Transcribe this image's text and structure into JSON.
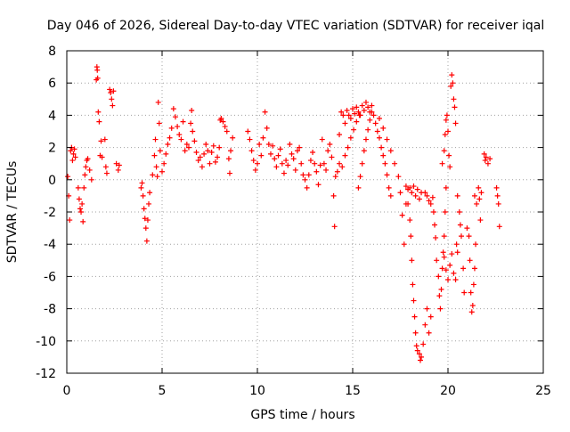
{
  "chart_data": {
    "type": "scatter",
    "title": "Day 046 of 2026, Sidereal Day-to-day VTEC variation (SDTVAR) for receiver iqal",
    "xlabel": "GPS time / hours",
    "ylabel": "SDTVAR / TECUs",
    "xlim": [
      0,
      25
    ],
    "ylim": [
      -12,
      8
    ],
    "xticks": [
      0,
      5,
      10,
      15,
      20,
      25
    ],
    "yticks": [
      -12,
      -10,
      -8,
      -6,
      -4,
      -2,
      0,
      2,
      4,
      6,
      8
    ],
    "grid": true,
    "marker": "+",
    "series": [
      {
        "name": "SDTVAR",
        "color": "#ff0000",
        "points": [
          [
            0.05,
            0.2
          ],
          [
            0.1,
            -1.0
          ],
          [
            0.15,
            -2.5
          ],
          [
            0.2,
            1.8
          ],
          [
            0.25,
            2.0
          ],
          [
            0.3,
            1.2
          ],
          [
            0.35,
            1.6
          ],
          [
            0.4,
            1.9
          ],
          [
            0.45,
            1.4
          ],
          [
            0.6,
            -0.5
          ],
          [
            0.65,
            -1.2
          ],
          [
            0.7,
            -1.8
          ],
          [
            0.75,
            -2.0
          ],
          [
            0.8,
            -1.5
          ],
          [
            0.85,
            -2.6
          ],
          [
            0.9,
            -0.5
          ],
          [
            0.95,
            0.3
          ],
          [
            1.0,
            0.8
          ],
          [
            1.05,
            1.2
          ],
          [
            1.1,
            1.3
          ],
          [
            1.2,
            0.6
          ],
          [
            1.3,
            0.0
          ],
          [
            1.55,
            6.2
          ],
          [
            1.58,
            7.0
          ],
          [
            1.6,
            6.8
          ],
          [
            1.62,
            6.3
          ],
          [
            1.65,
            4.2
          ],
          [
            1.7,
            3.6
          ],
          [
            1.75,
            1.5
          ],
          [
            1.8,
            2.4
          ],
          [
            1.85,
            1.4
          ],
          [
            2.0,
            2.5
          ],
          [
            2.05,
            0.8
          ],
          [
            2.1,
            0.4
          ],
          [
            2.25,
            5.6
          ],
          [
            2.3,
            5.4
          ],
          [
            2.35,
            5.0
          ],
          [
            2.4,
            4.6
          ],
          [
            2.45,
            5.5
          ],
          [
            2.6,
            1.0
          ],
          [
            2.7,
            0.6
          ],
          [
            2.75,
            0.9
          ],
          [
            3.9,
            -0.5
          ],
          [
            3.95,
            -0.2
          ],
          [
            4.0,
            -1.0
          ],
          [
            4.05,
            -1.8
          ],
          [
            4.1,
            -2.4
          ],
          [
            4.15,
            -3.0
          ],
          [
            4.2,
            -3.8
          ],
          [
            4.25,
            -2.5
          ],
          [
            4.3,
            -1.5
          ],
          [
            4.35,
            -0.8
          ],
          [
            4.5,
            0.3
          ],
          [
            4.6,
            1.5
          ],
          [
            4.65,
            2.5
          ],
          [
            4.7,
            0.8
          ],
          [
            4.75,
            0.2
          ],
          [
            4.8,
            4.8
          ],
          [
            4.85,
            3.5
          ],
          [
            4.9,
            1.8
          ],
          [
            5.0,
            0.5
          ],
          [
            5.1,
            1.0
          ],
          [
            5.2,
            1.6
          ],
          [
            5.3,
            2.2
          ],
          [
            5.4,
            2.6
          ],
          [
            5.5,
            3.2
          ],
          [
            5.6,
            4.4
          ],
          [
            5.7,
            3.9
          ],
          [
            5.8,
            3.3
          ],
          [
            5.9,
            2.8
          ],
          [
            6.0,
            2.5
          ],
          [
            6.1,
            3.6
          ],
          [
            6.2,
            1.8
          ],
          [
            6.3,
            2.2
          ],
          [
            6.4,
            2.0
          ],
          [
            6.5,
            3.5
          ],
          [
            6.55,
            4.3
          ],
          [
            6.6,
            3.0
          ],
          [
            6.7,
            2.4
          ],
          [
            6.8,
            1.7
          ],
          [
            6.9,
            1.2
          ],
          [
            7.0,
            1.4
          ],
          [
            7.1,
            0.8
          ],
          [
            7.2,
            1.6
          ],
          [
            7.3,
            2.2
          ],
          [
            7.4,
            1.8
          ],
          [
            7.5,
            1.0
          ],
          [
            7.6,
            1.7
          ],
          [
            7.7,
            2.1
          ],
          [
            7.8,
            1.1
          ],
          [
            7.9,
            1.4
          ],
          [
            8.0,
            2.0
          ],
          [
            8.05,
            3.7
          ],
          [
            8.1,
            3.8
          ],
          [
            8.2,
            3.6
          ],
          [
            8.3,
            3.3
          ],
          [
            8.4,
            3.0
          ],
          [
            8.5,
            1.3
          ],
          [
            8.55,
            0.4
          ],
          [
            8.6,
            1.8
          ],
          [
            8.7,
            2.6
          ],
          [
            9.5,
            3.0
          ],
          [
            9.6,
            2.5
          ],
          [
            9.7,
            1.8
          ],
          [
            9.8,
            1.2
          ],
          [
            9.9,
            0.6
          ],
          [
            10.0,
            1.0
          ],
          [
            10.1,
            2.2
          ],
          [
            10.2,
            1.5
          ],
          [
            10.3,
            2.6
          ],
          [
            10.4,
            4.2
          ],
          [
            10.5,
            3.2
          ],
          [
            10.6,
            2.2
          ],
          [
            10.7,
            1.6
          ],
          [
            10.8,
            2.1
          ],
          [
            10.9,
            1.3
          ],
          [
            11.0,
            0.8
          ],
          [
            11.1,
            1.5
          ],
          [
            11.2,
            1.9
          ],
          [
            11.3,
            1.0
          ],
          [
            11.4,
            0.4
          ],
          [
            11.5,
            1.2
          ],
          [
            11.6,
            0.9
          ],
          [
            11.7,
            2.2
          ],
          [
            11.8,
            1.6
          ],
          [
            11.9,
            1.3
          ],
          [
            12.0,
            0.6
          ],
          [
            12.1,
            1.8
          ],
          [
            12.2,
            2.0
          ],
          [
            12.3,
            1.0
          ],
          [
            12.4,
            0.3
          ],
          [
            12.5,
            0.0
          ],
          [
            12.6,
            -0.5
          ],
          [
            12.7,
            0.3
          ],
          [
            12.8,
            1.2
          ],
          [
            12.9,
            1.7
          ],
          [
            13.0,
            1.0
          ],
          [
            13.1,
            0.5
          ],
          [
            13.2,
            -0.3
          ],
          [
            13.3,
            0.9
          ],
          [
            13.4,
            2.5
          ],
          [
            13.5,
            1.0
          ],
          [
            13.6,
            0.6
          ],
          [
            13.7,
            1.8
          ],
          [
            13.8,
            2.2
          ],
          [
            13.9,
            1.4
          ],
          [
            14.0,
            -1.0
          ],
          [
            14.05,
            -2.9
          ],
          [
            14.1,
            0.2
          ],
          [
            14.3,
            2.8
          ],
          [
            14.4,
            4.2
          ],
          [
            14.5,
            4.0
          ],
          [
            14.6,
            3.5
          ],
          [
            14.7,
            4.3
          ],
          [
            14.8,
            4.0
          ],
          [
            14.9,
            3.8
          ],
          [
            15.0,
            4.4
          ],
          [
            15.1,
            4.1
          ],
          [
            15.2,
            4.5
          ],
          [
            15.3,
            4.2
          ],
          [
            15.4,
            4.0
          ],
          [
            15.5,
            4.6
          ],
          [
            15.6,
            4.3
          ],
          [
            15.7,
            4.8
          ],
          [
            15.8,
            4.5
          ],
          [
            15.9,
            4.2
          ],
          [
            16.0,
            4.6
          ],
          [
            16.1,
            4.0
          ],
          [
            14.2,
            0.5
          ],
          [
            14.3,
            1.0
          ],
          [
            14.45,
            0.8
          ],
          [
            14.6,
            1.5
          ],
          [
            14.75,
            2.0
          ],
          [
            14.9,
            2.6
          ],
          [
            15.05,
            3.1
          ],
          [
            15.2,
            3.6
          ],
          [
            15.35,
            4.0
          ],
          [
            15.3,
            -0.5
          ],
          [
            15.4,
            0.2
          ],
          [
            15.5,
            1.0
          ],
          [
            15.6,
            1.8
          ],
          [
            15.7,
            2.5
          ],
          [
            15.8,
            3.1
          ],
          [
            15.9,
            3.7
          ],
          [
            16.0,
            4.2
          ],
          [
            16.2,
            3.5
          ],
          [
            16.3,
            3.0
          ],
          [
            16.4,
            2.6
          ],
          [
            16.5,
            2.0
          ],
          [
            16.6,
            1.5
          ],
          [
            16.7,
            1.0
          ],
          [
            16.8,
            0.3
          ],
          [
            16.9,
            -0.5
          ],
          [
            17.0,
            -1.0
          ],
          [
            16.4,
            3.8
          ],
          [
            16.6,
            3.2
          ],
          [
            16.8,
            2.5
          ],
          [
            17.0,
            1.8
          ],
          [
            17.2,
            1.0
          ],
          [
            17.4,
            0.2
          ],
          [
            17.5,
            -0.8
          ],
          [
            17.6,
            -2.2
          ],
          [
            17.7,
            -4.0
          ],
          [
            17.8,
            -1.5
          ],
          [
            17.8,
            -0.4
          ],
          [
            17.9,
            -0.6
          ],
          [
            18.0,
            -0.5
          ],
          [
            18.1,
            -0.8
          ],
          [
            18.2,
            -0.4
          ],
          [
            18.3,
            -1.0
          ],
          [
            18.4,
            -0.6
          ],
          [
            18.5,
            -1.2
          ],
          [
            18.6,
            -0.8
          ],
          [
            17.9,
            -1.5
          ],
          [
            18.0,
            -2.5
          ],
          [
            18.05,
            -3.5
          ],
          [
            18.1,
            -5.0
          ],
          [
            18.15,
            -6.5
          ],
          [
            18.2,
            -7.5
          ],
          [
            18.25,
            -8.5
          ],
          [
            18.3,
            -9.5
          ],
          [
            18.35,
            -10.3
          ],
          [
            18.4,
            -10.6
          ],
          [
            18.5,
            -10.8
          ],
          [
            18.55,
            -11.2
          ],
          [
            18.6,
            -11.0
          ],
          [
            18.7,
            -10.2
          ],
          [
            18.8,
            -9.0
          ],
          [
            18.9,
            -8.0
          ],
          [
            19.0,
            -9.5
          ],
          [
            19.1,
            -8.5
          ],
          [
            18.8,
            -0.8
          ],
          [
            18.9,
            -1.0
          ],
          [
            19.0,
            -1.3
          ],
          [
            19.1,
            -1.5
          ],
          [
            19.2,
            -1.1
          ],
          [
            19.25,
            -2.0
          ],
          [
            19.3,
            -2.8
          ],
          [
            19.35,
            -3.6
          ],
          [
            19.4,
            -5.0
          ],
          [
            19.5,
            -6.0
          ],
          [
            19.55,
            -7.2
          ],
          [
            19.6,
            -8.0
          ],
          [
            19.65,
            -6.8
          ],
          [
            19.7,
            -5.5
          ],
          [
            19.75,
            -4.5
          ],
          [
            19.8,
            -3.5
          ],
          [
            19.85,
            -2.0
          ],
          [
            19.9,
            -0.5
          ],
          [
            19.7,
            1.0
          ],
          [
            19.8,
            1.8
          ],
          [
            19.85,
            2.8
          ],
          [
            19.9,
            3.7
          ],
          [
            19.95,
            4.0
          ],
          [
            20.0,
            3.0
          ],
          [
            20.05,
            1.5
          ],
          [
            20.1,
            0.8
          ],
          [
            20.15,
            5.8
          ],
          [
            20.2,
            6.5
          ],
          [
            20.25,
            6.0
          ],
          [
            20.3,
            5.0
          ],
          [
            20.35,
            4.5
          ],
          [
            20.4,
            3.5
          ],
          [
            19.8,
            -4.8
          ],
          [
            19.9,
            -5.6
          ],
          [
            20.0,
            -6.2
          ],
          [
            20.1,
            -5.3
          ],
          [
            20.2,
            -4.6
          ],
          [
            20.3,
            -5.8
          ],
          [
            20.4,
            -6.2
          ],
          [
            20.45,
            -4.0
          ],
          [
            20.5,
            -4.5
          ],
          [
            20.5,
            -1.0
          ],
          [
            20.6,
            -2.0
          ],
          [
            20.65,
            -2.8
          ],
          [
            20.7,
            -3.5
          ],
          [
            20.8,
            -5.5
          ],
          [
            20.85,
            -7.0
          ],
          [
            21.0,
            -3.0
          ],
          [
            21.1,
            -3.5
          ],
          [
            21.15,
            -5.0
          ],
          [
            21.2,
            -7.0
          ],
          [
            21.25,
            -8.2
          ],
          [
            21.3,
            -7.8
          ],
          [
            21.35,
            -6.5
          ],
          [
            21.4,
            -5.5
          ],
          [
            21.45,
            -4.0
          ],
          [
            21.4,
            -1.0
          ],
          [
            21.5,
            -1.5
          ],
          [
            21.6,
            -0.5
          ],
          [
            21.65,
            -1.2
          ],
          [
            21.7,
            -2.5
          ],
          [
            21.75,
            -0.8
          ],
          [
            21.9,
            1.6
          ],
          [
            21.95,
            1.2
          ],
          [
            22.0,
            1.4
          ],
          [
            22.1,
            1.0
          ],
          [
            22.2,
            1.3
          ],
          [
            22.55,
            -0.5
          ],
          [
            22.6,
            -1.0
          ],
          [
            22.65,
            -1.5
          ],
          [
            22.7,
            -2.9
          ]
        ]
      }
    ]
  }
}
